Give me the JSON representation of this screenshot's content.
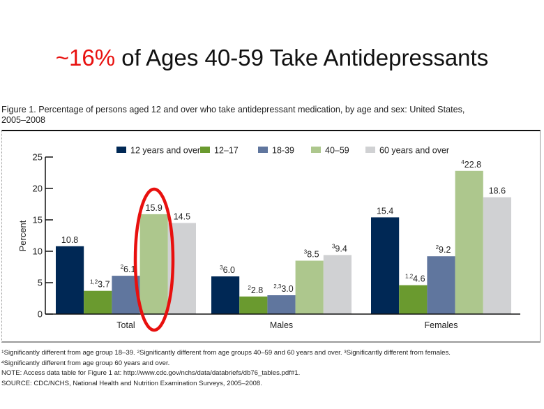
{
  "slide": {
    "title_highlight": "~16%",
    "title_rest": " of Ages 40-59 Take Antidepressants",
    "highlight_color": "#e8100e"
  },
  "figure": {
    "caption_line1": "Figure 1. Percentage of persons aged 12 and over who take antidepressant medication, by age and sex: United States,",
    "caption_line2": "2005–2008"
  },
  "chart_data": {
    "type": "bar",
    "title": "Figure 1. Percentage of persons aged 12 and over who take antidepressant medication, by age and sex: United States, 2005–2008",
    "xlabel": "",
    "ylabel": "Percent",
    "ylim": [
      0,
      25
    ],
    "yticks": [
      "0",
      "5",
      "10",
      "15",
      "20",
      "25"
    ],
    "categories": [
      "Total",
      "Males",
      "Females"
    ],
    "legend_position": "top",
    "grid": false,
    "series": [
      {
        "name": "12 years and over",
        "color": "#002855",
        "values": [
          10.8,
          6.0,
          15.4
        ],
        "labels": [
          "10.8",
          "6.0",
          "15.4"
        ],
        "superscripts": [
          "",
          "3",
          ""
        ]
      },
      {
        "name": "12–17",
        "color": "#6a9a2f",
        "values": [
          3.7,
          2.8,
          4.6
        ],
        "labels": [
          "3.7",
          "2.8",
          "4.6"
        ],
        "superscripts": [
          "1,2",
          "2",
          "1,2"
        ]
      },
      {
        "name": "18-39",
        "color": "#60769e",
        "values": [
          6.1,
          3.0,
          9.2
        ],
        "labels": [
          "6.1",
          "3.0",
          "9.2"
        ],
        "superscripts": [
          "2",
          "2,3",
          "2"
        ]
      },
      {
        "name": "40–59",
        "color": "#adc78d",
        "values": [
          15.9,
          8.5,
          22.8
        ],
        "labels": [
          "15.9",
          "8.5",
          "22.8"
        ],
        "superscripts": [
          "",
          "3",
          "4"
        ]
      },
      {
        "name": "60 years and over",
        "color": "#d0d1d3",
        "values": [
          14.5,
          9.4,
          18.6
        ],
        "labels": [
          "14.5",
          "9.4",
          "18.6"
        ],
        "superscripts": [
          "",
          "3",
          ""
        ]
      }
    ],
    "annotation": {
      "type": "ellipse",
      "target": "Total / 40–59",
      "color": "#e8100e"
    }
  },
  "notes": {
    "line1_sup1": "1",
    "line1_text1": "Significantly different from age group 18–39.  ",
    "line1_sup2": "2",
    "line1_text2": "Significantly different from age groups 40–59 and 60 years and over.  ",
    "line1_sup3": "3",
    "line1_text3": "Significantly different from females.",
    "line2_sup": "4",
    "line2_text": "Significantly different from age group 60 years and over.",
    "note": "NOTE: Access data table for Figure 1 at: http://www.cdc.gov/nchs/data/databriefs/db76_tables.pdf#1.",
    "source": "SOURCE: CDC/NCHS, National Health and Nutrition Examination Surveys, 2005–2008."
  }
}
